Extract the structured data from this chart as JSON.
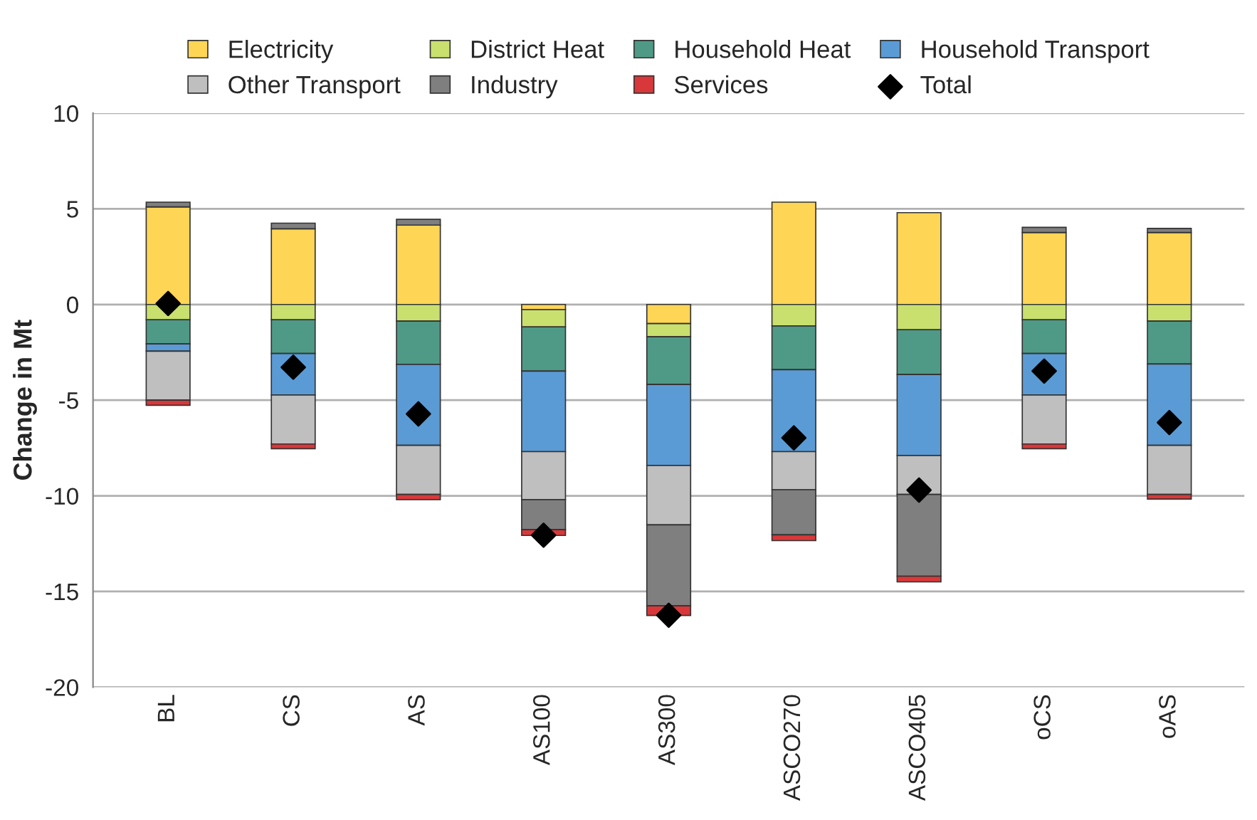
{
  "chart_data": {
    "type": "bar",
    "stacked": true,
    "ylabel": "Change in Mt",
    "categories": [
      "BL",
      "CS",
      "AS",
      "AS100",
      "AS300",
      "ASCO270",
      "ASCO405",
      "oCS",
      "oAS"
    ],
    "series": [
      {
        "name": "Electricity",
        "color": "#ffd556",
        "values": [
          5.1,
          3.96,
          4.15,
          -0.27,
          -1.0,
          5.35,
          4.8,
          3.76,
          3.76
        ]
      },
      {
        "name": "District Heat",
        "color": "#c9e06e",
        "values": [
          -0.8,
          -0.8,
          -0.87,
          -0.9,
          -0.69,
          -1.12,
          -1.32,
          -0.8,
          -0.87
        ]
      },
      {
        "name": "Household Heat",
        "color": "#4f9a87",
        "values": [
          -1.26,
          -1.76,
          -2.26,
          -2.31,
          -2.49,
          -2.29,
          -2.34,
          -1.76,
          -2.24
        ]
      },
      {
        "name": "Household Transport",
        "color": "#5b9bd5",
        "values": [
          -0.38,
          -2.17,
          -4.23,
          -4.21,
          -4.23,
          -4.28,
          -4.23,
          -2.17,
          -4.25
        ]
      },
      {
        "name": "Other Transport",
        "color": "#bfbfbf",
        "values": [
          -2.56,
          -2.56,
          -2.57,
          -2.51,
          -3.11,
          -1.99,
          -2.04,
          -2.56,
          -2.57
        ]
      },
      {
        "name": "Industry",
        "color": "#7f7f7f",
        "values": [
          0.25,
          0.29,
          0.3,
          -1.57,
          -4.23,
          -2.36,
          -4.27,
          0.27,
          0.22
        ]
      },
      {
        "name": "Services",
        "color": "#d9383a",
        "values": [
          -0.27,
          -0.25,
          -0.27,
          -0.3,
          -0.5,
          -0.3,
          -0.3,
          -0.25,
          -0.24
        ]
      },
      {
        "name": "Total",
        "type": "scatter",
        "marker": "diamond",
        "color": "#000000",
        "x": [
          "BL",
          "CS",
          "AS",
          "AS100",
          "AS300",
          "ASCO270",
          "ASCO405",
          "oCS",
          "oAS"
        ],
        "values": [
          0.05,
          -3.28,
          -5.72,
          -12.06,
          -16.24,
          -6.97,
          -9.7,
          -3.48,
          -6.17
        ]
      }
    ],
    "ylim": [
      -20,
      10
    ],
    "yticks": [
      -20,
      -15,
      -10,
      -5,
      0,
      5,
      10
    ],
    "grid": "y",
    "legend": "top"
  }
}
